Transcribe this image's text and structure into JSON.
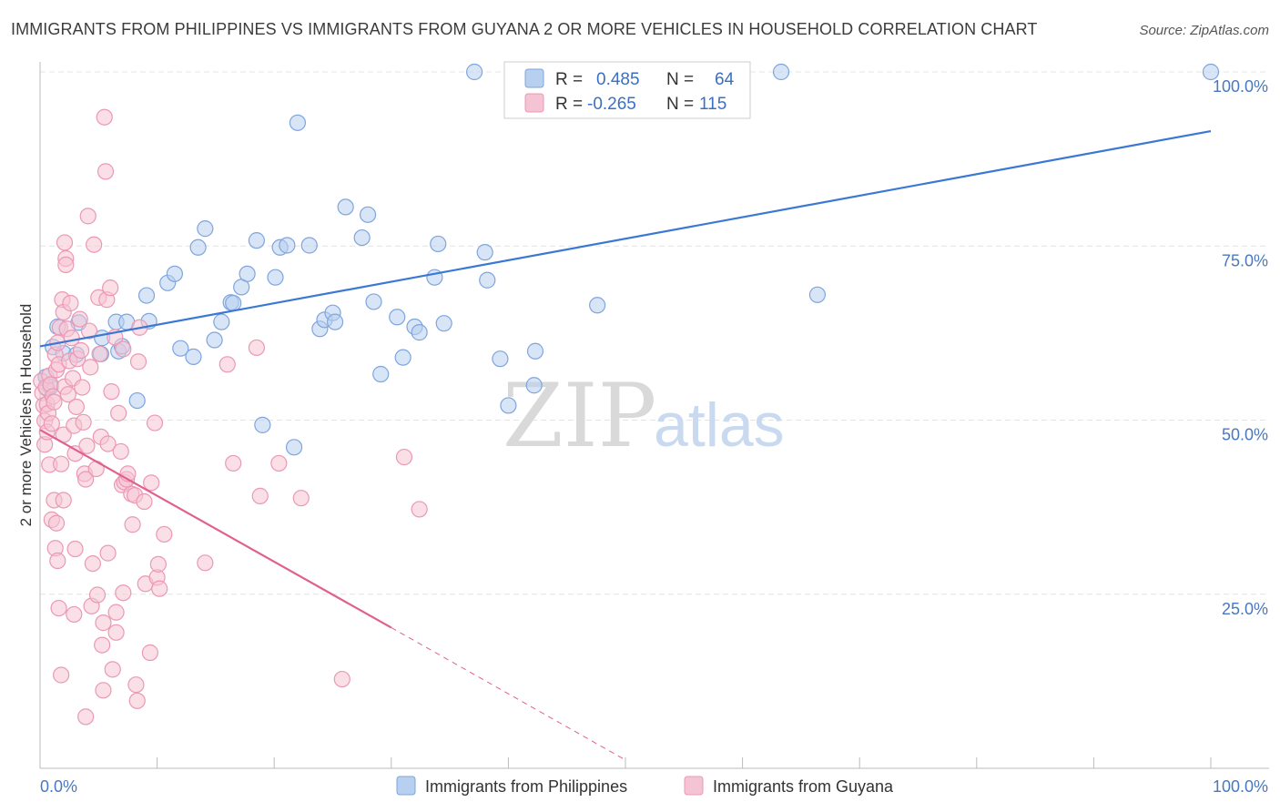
{
  "title": "IMMIGRANTS FROM PHILIPPINES VS IMMIGRANTS FROM GUYANA 2 OR MORE VEHICLES IN HOUSEHOLD CORRELATION CHART",
  "source": "Source: ZipAtlas.com",
  "watermark": {
    "zip": "ZIP",
    "atlas": "atlas"
  },
  "colors": {
    "blue": "#3a78d4",
    "pink": "#e0608e",
    "blue_fill": "#b8d0f0",
    "pink_fill": "#f5c4d4"
  },
  "legend": {
    "rows": [
      {
        "r_label": "R =",
        "r_value": "0.485",
        "n_label": "N =",
        "n_value": "64"
      },
      {
        "r_label": "R =",
        "r_value": "-0.265",
        "n_label": "N =",
        "n_value": "115"
      }
    ]
  },
  "chart_data": {
    "type": "scatter",
    "ylabel": "2 or more Vehicles in Household",
    "xlim": [
      0,
      100
    ],
    "ylim": [
      0,
      100
    ],
    "x_ticks": [
      "0.0%",
      "100.0%"
    ],
    "y_ticks": [
      {
        "value": 25,
        "label": "25.0%"
      },
      {
        "value": 50,
        "label": "50.0%"
      },
      {
        "value": 75,
        "label": "75.0%"
      },
      {
        "value": 100,
        "label": "100.0%"
      }
    ],
    "grid": true,
    "legend_position": "bottom",
    "series": [
      {
        "name": "Immigrants from Philippines",
        "color": "#3a78d4",
        "trend": {
          "x": [
            0,
            100
          ],
          "y": [
            60.6,
            91.5
          ]
        },
        "points": [
          [
            0.5,
            56.2
          ],
          [
            0.6,
            54.5
          ],
          [
            0.9,
            54.8
          ],
          [
            1.1,
            60.5
          ],
          [
            1.5,
            63.4
          ],
          [
            2.0,
            59.6
          ],
          [
            3.1,
            59.4
          ],
          [
            3.3,
            64.0
          ],
          [
            5.2,
            59.5
          ],
          [
            5.3,
            61.8
          ],
          [
            6.5,
            64.1
          ],
          [
            6.7,
            59.9
          ],
          [
            7.0,
            60.6
          ],
          [
            7.4,
            64.1
          ],
          [
            8.3,
            52.8
          ],
          [
            9.1,
            67.9
          ],
          [
            9.3,
            64.2
          ],
          [
            10.9,
            69.7
          ],
          [
            11.5,
            71.0
          ],
          [
            12.0,
            60.3
          ],
          [
            13.1,
            59.1
          ],
          [
            13.5,
            74.8
          ],
          [
            14.1,
            77.5
          ],
          [
            14.9,
            61.5
          ],
          [
            15.5,
            64.1
          ],
          [
            16.3,
            66.9
          ],
          [
            16.5,
            66.8
          ],
          [
            17.2,
            69.1
          ],
          [
            17.7,
            71.0
          ],
          [
            18.5,
            75.8
          ],
          [
            19.0,
            49.3
          ],
          [
            20.1,
            70.5
          ],
          [
            20.5,
            74.8
          ],
          [
            21.1,
            75.1
          ],
          [
            21.7,
            46.1
          ],
          [
            22.0,
            92.7
          ],
          [
            23.0,
            75.1
          ],
          [
            23.9,
            63.1
          ],
          [
            24.3,
            64.4
          ],
          [
            25.0,
            65.4
          ],
          [
            25.2,
            64.1
          ],
          [
            26.1,
            80.6
          ],
          [
            27.5,
            76.2
          ],
          [
            28.0,
            79.5
          ],
          [
            28.5,
            67.0
          ],
          [
            29.1,
            56.6
          ],
          [
            30.5,
            64.8
          ],
          [
            31.0,
            59.0
          ],
          [
            32.0,
            63.4
          ],
          [
            32.4,
            62.6
          ],
          [
            33.7,
            70.5
          ],
          [
            34.0,
            75.3
          ],
          [
            34.5,
            63.9
          ],
          [
            37.1,
            100.0
          ],
          [
            38.0,
            74.1
          ],
          [
            38.2,
            70.1
          ],
          [
            39.3,
            58.8
          ],
          [
            40.0,
            52.1
          ],
          [
            42.2,
            55.0
          ],
          [
            42.3,
            59.9
          ],
          [
            47.6,
            66.5
          ],
          [
            63.3,
            100.0
          ],
          [
            66.4,
            68.0
          ],
          [
            100.0,
            100.0
          ]
        ]
      },
      {
        "name": "Immigrants from Guyana",
        "color": "#e0608e",
        "trend": {
          "x": [
            0,
            30
          ],
          "y": [
            48.6,
            20.2
          ]
        },
        "trend_dashed": {
          "x": [
            30,
            50
          ],
          "y": [
            20.2,
            1.2
          ]
        },
        "points": [
          [
            0.1,
            55.6
          ],
          [
            0.2,
            53.9
          ],
          [
            0.3,
            52.1
          ],
          [
            0.4,
            49.9
          ],
          [
            0.4,
            46.5
          ],
          [
            0.5,
            54.7
          ],
          [
            0.6,
            52.3
          ],
          [
            0.6,
            48.3
          ],
          [
            0.7,
            51.0
          ],
          [
            0.8,
            56.4
          ],
          [
            0.8,
            43.6
          ],
          [
            0.9,
            55.1
          ],
          [
            1.0,
            49.5
          ],
          [
            1.0,
            35.7
          ],
          [
            1.1,
            53.4
          ],
          [
            1.2,
            52.6
          ],
          [
            1.2,
            38.5
          ],
          [
            1.3,
            59.4
          ],
          [
            1.3,
            31.6
          ],
          [
            1.4,
            57.2
          ],
          [
            1.4,
            35.2
          ],
          [
            1.5,
            61.1
          ],
          [
            1.5,
            29.8
          ],
          [
            1.6,
            58.0
          ],
          [
            1.6,
            23.0
          ],
          [
            1.7,
            63.3
          ],
          [
            1.8,
            43.7
          ],
          [
            1.8,
            13.4
          ],
          [
            1.9,
            67.3
          ],
          [
            2.0,
            65.5
          ],
          [
            2.0,
            47.9
          ],
          [
            2.0,
            38.5
          ],
          [
            2.1,
            54.8
          ],
          [
            2.1,
            75.5
          ],
          [
            2.2,
            73.2
          ],
          [
            2.2,
            72.3
          ],
          [
            2.3,
            63.1
          ],
          [
            2.4,
            53.7
          ],
          [
            2.5,
            58.5
          ],
          [
            2.6,
            66.8
          ],
          [
            2.7,
            61.8
          ],
          [
            2.8,
            56.0
          ],
          [
            2.9,
            49.2
          ],
          [
            2.9,
            22.1
          ],
          [
            3.0,
            45.2
          ],
          [
            3.0,
            31.5
          ],
          [
            3.1,
            51.9
          ],
          [
            3.2,
            58.8
          ],
          [
            3.4,
            64.5
          ],
          [
            3.5,
            60.0
          ],
          [
            3.6,
            54.7
          ],
          [
            3.7,
            49.7
          ],
          [
            3.8,
            42.3
          ],
          [
            3.9,
            41.5
          ],
          [
            3.9,
            7.4
          ],
          [
            4.0,
            46.3
          ],
          [
            4.1,
            79.3
          ],
          [
            4.2,
            62.8
          ],
          [
            4.3,
            57.6
          ],
          [
            4.4,
            23.3
          ],
          [
            4.5,
            29.4
          ],
          [
            4.6,
            75.2
          ],
          [
            4.8,
            43.0
          ],
          [
            4.9,
            24.9
          ],
          [
            5.0,
            67.6
          ],
          [
            5.1,
            59.5
          ],
          [
            5.2,
            47.6
          ],
          [
            5.3,
            17.7
          ],
          [
            5.4,
            20.9
          ],
          [
            5.4,
            11.2
          ],
          [
            5.5,
            93.5
          ],
          [
            5.6,
            85.7
          ],
          [
            5.7,
            67.3
          ],
          [
            5.8,
            46.6
          ],
          [
            5.8,
            30.9
          ],
          [
            6.0,
            69.0
          ],
          [
            6.1,
            54.1
          ],
          [
            6.2,
            14.2
          ],
          [
            6.4,
            61.9
          ],
          [
            6.5,
            22.4
          ],
          [
            6.5,
            19.5
          ],
          [
            6.7,
            51.0
          ],
          [
            6.9,
            45.5
          ],
          [
            7.0,
            40.7
          ],
          [
            7.1,
            60.2
          ],
          [
            7.1,
            25.2
          ],
          [
            7.2,
            41.1
          ],
          [
            7.4,
            41.5
          ],
          [
            7.5,
            42.3
          ],
          [
            7.8,
            39.4
          ],
          [
            7.9,
            35.0
          ],
          [
            8.1,
            39.2
          ],
          [
            8.2,
            12.0
          ],
          [
            8.3,
            9.7
          ],
          [
            8.4,
            58.4
          ],
          [
            8.5,
            63.3
          ],
          [
            8.9,
            38.3
          ],
          [
            9.0,
            26.5
          ],
          [
            9.4,
            16.6
          ],
          [
            9.5,
            41.0
          ],
          [
            9.8,
            49.6
          ],
          [
            10.0,
            27.4
          ],
          [
            10.1,
            29.3
          ],
          [
            10.2,
            25.8
          ],
          [
            10.6,
            33.6
          ],
          [
            14.1,
            29.5
          ],
          [
            16.0,
            58.0
          ],
          [
            16.5,
            43.8
          ],
          [
            18.5,
            60.4
          ],
          [
            18.8,
            39.1
          ],
          [
            20.4,
            43.8
          ],
          [
            22.3,
            38.8
          ],
          [
            25.8,
            12.8
          ],
          [
            31.1,
            44.7
          ],
          [
            32.4,
            37.2
          ]
        ]
      }
    ]
  }
}
